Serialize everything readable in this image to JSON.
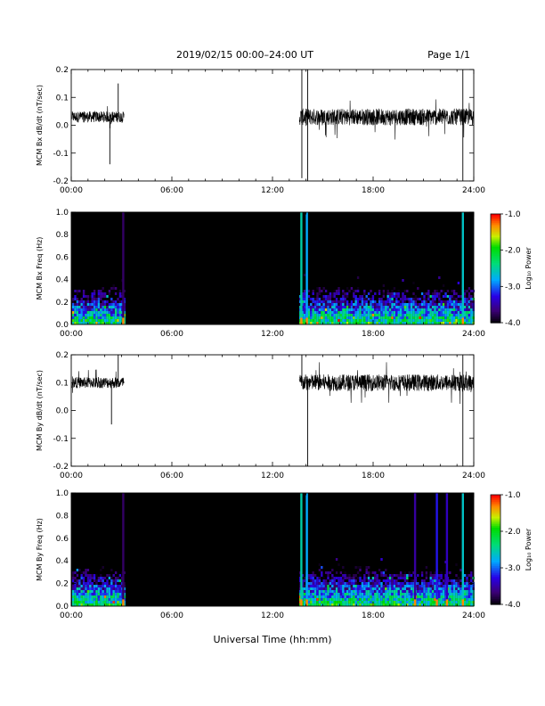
{
  "header": {
    "date_range": "2019/02/15  00:00–24:00 UT",
    "page": "Page 1/1"
  },
  "xlabel": "Universal Time (hh:mm)",
  "chart_data": [
    {
      "type": "line",
      "ylabel": "MCM Bx dB/dt (nT/sec)",
      "xlim": [
        0,
        24
      ],
      "ylim": [
        -0.2,
        0.2
      ],
      "x_ticks": [
        "00:00",
        "06:00",
        "12:00",
        "18:00",
        "24:00"
      ],
      "y_ticks": [
        "-0.2",
        "-0.1",
        "0.0",
        "0.1",
        "0.2"
      ],
      "segments": [
        {
          "x": [
            0.05,
            3.15
          ],
          "baseline": 0.03,
          "amp": 0.02
        },
        {
          "x": [
            13.6,
            24.0
          ],
          "baseline": 0.03,
          "amp": 0.03
        }
      ],
      "spikes": [
        {
          "x": 2.3,
          "y": -0.14
        },
        {
          "x": 2.8,
          "y": 0.15
        },
        {
          "x": 13.75,
          "y": -0.19
        },
        {
          "x": 13.75,
          "y": 0.2
        },
        {
          "x": 14.1,
          "y": -0.2
        },
        {
          "x": 14.1,
          "y": 0.2
        },
        {
          "x": 23.35,
          "y": -0.2
        },
        {
          "x": 23.35,
          "y": 0.2
        }
      ]
    },
    {
      "type": "heatmap",
      "ylabel": "MCM Bx Freq (Hz)",
      "xlim": [
        0,
        24
      ],
      "ylim": [
        0.0,
        1.0
      ],
      "x_ticks": [
        "00:00",
        "06:00",
        "12:00",
        "18:00",
        "24:00"
      ],
      "y_ticks": [
        "0.0",
        "0.2",
        "0.4",
        "0.6",
        "0.8",
        "1.0"
      ],
      "colorbar": {
        "label": "Log₁₀ Power",
        "range": [
          -4.0,
          -1.0
        ],
        "ticks": [
          "-1.0",
          "-2.0",
          "-3.0",
          "-4.0"
        ]
      },
      "active_intervals": [
        [
          0.05,
          3.15
        ],
        [
          13.6,
          24.0
        ]
      ],
      "vertical_lines": [
        {
          "x": 3.1,
          "level": -3.7
        },
        {
          "x": 13.72,
          "level": -2.5
        },
        {
          "x": 14.05,
          "level": -2.8
        },
        {
          "x": 23.35,
          "level": -2.6
        }
      ]
    },
    {
      "type": "line",
      "ylabel": "MCM By dB/dt (nT/sec)",
      "xlim": [
        0,
        24
      ],
      "ylim": [
        -0.2,
        0.2
      ],
      "x_ticks": [
        "00:00",
        "06:00",
        "12:00",
        "18:00",
        "24:00"
      ],
      "y_ticks": [
        "-0.2",
        "-0.1",
        "0.0",
        "0.1",
        "0.2"
      ],
      "segments": [
        {
          "x": [
            0.05,
            3.15
          ],
          "baseline": 0.1,
          "amp": 0.02
        },
        {
          "x": [
            13.6,
            24.0
          ],
          "baseline": 0.1,
          "amp": 0.03
        }
      ],
      "spikes": [
        {
          "x": 2.4,
          "y": -0.05
        },
        {
          "x": 2.8,
          "y": 0.2
        },
        {
          "x": 13.75,
          "y": 0.2
        },
        {
          "x": 14.1,
          "y": -0.2
        },
        {
          "x": 23.35,
          "y": -0.2
        },
        {
          "x": 23.35,
          "y": 0.2
        }
      ]
    },
    {
      "type": "heatmap",
      "ylabel": "MCM By Freq (Hz)",
      "xlim": [
        0,
        24
      ],
      "ylim": [
        0.0,
        1.0
      ],
      "x_ticks": [
        "00:00",
        "06:00",
        "12:00",
        "18:00",
        "24:00"
      ],
      "y_ticks": [
        "0.0",
        "0.2",
        "0.4",
        "0.6",
        "0.8",
        "1.0"
      ],
      "colorbar": {
        "label": "Log₁₀ Power",
        "range": [
          -4.0,
          -1.0
        ],
        "ticks": [
          "-1.0",
          "-2.0",
          "-3.0",
          "-4.0"
        ]
      },
      "active_intervals": [
        [
          0.05,
          3.15
        ],
        [
          13.6,
          24.0
        ]
      ],
      "vertical_lines": [
        {
          "x": 3.1,
          "level": -3.7
        },
        {
          "x": 13.72,
          "level": -2.5
        },
        {
          "x": 14.05,
          "level": -2.8
        },
        {
          "x": 20.5,
          "level": -3.5
        },
        {
          "x": 21.8,
          "level": -3.2
        },
        {
          "x": 22.4,
          "level": -3.4
        },
        {
          "x": 23.35,
          "level": -2.6
        }
      ]
    }
  ]
}
